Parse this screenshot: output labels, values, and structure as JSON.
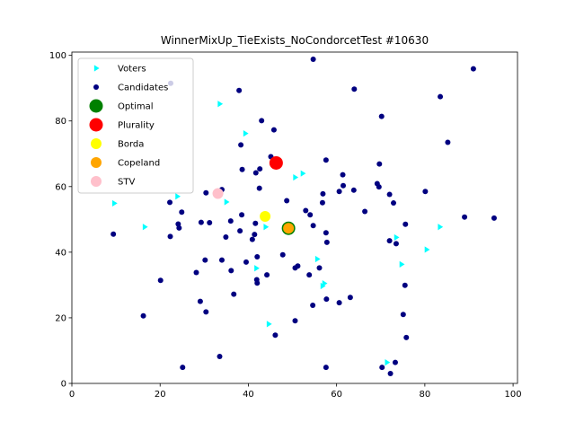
{
  "chart_data": {
    "type": "scatter",
    "title": "WinnerMixUp_TieExists_NoCondorcetTest #10630",
    "xlabel": "",
    "ylabel": "",
    "xlim": [
      0,
      101
    ],
    "ylim": [
      0,
      101
    ],
    "x_ticks": [
      "0",
      "20",
      "40",
      "60",
      "80",
      "100"
    ],
    "y_ticks": [
      "0",
      "20",
      "40",
      "60",
      "80",
      "100"
    ],
    "grid": false,
    "legend_position": "top-left",
    "series": [
      {
        "name": "Voters",
        "marker": "triangle-right",
        "color": "#00ffff",
        "points": [
          [
            33.5,
            85.2
          ],
          [
            39.3,
            76.2
          ],
          [
            52.3,
            64.0
          ],
          [
            50.6,
            62.8
          ],
          [
            23.9,
            57.0
          ],
          [
            9.6,
            54.9
          ],
          [
            35.0,
            55.3
          ],
          [
            16.5,
            47.7
          ],
          [
            43.9,
            47.7
          ],
          [
            41.8,
            35.1
          ],
          [
            55.6,
            37.9
          ],
          [
            57.2,
            30.5
          ],
          [
            44.6,
            18.1
          ],
          [
            73.5,
            44.5
          ],
          [
            80.4,
            40.8
          ],
          [
            74.7,
            36.3
          ],
          [
            83.4,
            47.7
          ],
          [
            71.4,
            6.4
          ],
          [
            56.8,
            29.7
          ]
        ]
      },
      {
        "name": "Candidates",
        "marker": "circle",
        "color": "#000080",
        "points": [
          [
            54.7,
            98.8
          ],
          [
            91.0,
            95.9
          ],
          [
            22.4,
            91.5
          ],
          [
            37.9,
            89.3
          ],
          [
            64.0,
            89.7
          ],
          [
            83.5,
            87.4
          ],
          [
            70.2,
            81.4
          ],
          [
            43.0,
            80.1
          ],
          [
            45.8,
            77.3
          ],
          [
            85.2,
            73.5
          ],
          [
            38.3,
            72.7
          ],
          [
            45.1,
            69.1
          ],
          [
            57.6,
            68.1
          ],
          [
            69.7,
            66.9
          ],
          [
            38.6,
            65.2
          ],
          [
            41.7,
            64.2
          ],
          [
            42.6,
            65.4
          ],
          [
            61.4,
            63.6
          ],
          [
            61.5,
            60.3
          ],
          [
            69.2,
            60.9
          ],
          [
            69.6,
            59.9
          ],
          [
            63.9,
            58.9
          ],
          [
            60.6,
            58.5
          ],
          [
            72.0,
            57.6
          ],
          [
            80.1,
            58.5
          ],
          [
            42.5,
            59.5
          ],
          [
            34.0,
            59.1
          ],
          [
            30.4,
            58.1
          ],
          [
            56.9,
            57.8
          ],
          [
            48.7,
            55.7
          ],
          [
            56.8,
            55.1
          ],
          [
            72.9,
            55.0
          ],
          [
            22.2,
            55.2
          ],
          [
            53.0,
            52.7
          ],
          [
            54.0,
            51.4
          ],
          [
            66.4,
            52.4
          ],
          [
            24.9,
            52.2
          ],
          [
            38.5,
            51.4
          ],
          [
            36.0,
            49.5
          ],
          [
            29.3,
            49.1
          ],
          [
            31.2,
            49.0
          ],
          [
            24.1,
            48.6
          ],
          [
            24.3,
            47.4
          ],
          [
            54.7,
            48.1
          ],
          [
            41.6,
            48.8
          ],
          [
            75.6,
            48.5
          ],
          [
            57.6,
            45.9
          ],
          [
            38.1,
            46.5
          ],
          [
            41.4,
            45.4
          ],
          [
            22.3,
            44.8
          ],
          [
            9.4,
            45.5
          ],
          [
            34.9,
            44.6
          ],
          [
            40.9,
            43.9
          ],
          [
            72.0,
            43.5
          ],
          [
            73.5,
            42.6
          ],
          [
            57.8,
            43.0
          ],
          [
            89.0,
            50.7
          ],
          [
            95.7,
            50.4
          ],
          [
            42.0,
            38.6
          ],
          [
            47.8,
            39.2
          ],
          [
            34.0,
            37.6
          ],
          [
            30.2,
            37.6
          ],
          [
            39.5,
            37.0
          ],
          [
            51.2,
            35.8
          ],
          [
            50.6,
            35.2
          ],
          [
            56.1,
            35.2
          ],
          [
            36.1,
            34.4
          ],
          [
            28.2,
            33.8
          ],
          [
            44.2,
            33.1
          ],
          [
            53.8,
            33.1
          ],
          [
            20.1,
            31.4
          ],
          [
            41.9,
            31.6
          ],
          [
            42.0,
            30.6
          ],
          [
            75.5,
            29.9
          ],
          [
            36.7,
            27.2
          ],
          [
            63.1,
            26.2
          ],
          [
            57.7,
            25.7
          ],
          [
            60.6,
            24.6
          ],
          [
            29.1,
            25.0
          ],
          [
            54.6,
            23.8
          ],
          [
            30.4,
            21.8
          ],
          [
            16.2,
            20.6
          ],
          [
            75.1,
            21.0
          ],
          [
            50.6,
            19.1
          ],
          [
            46.1,
            14.7
          ],
          [
            75.8,
            14.0
          ],
          [
            33.5,
            8.2
          ],
          [
            73.3,
            6.4
          ],
          [
            25.1,
            4.9
          ],
          [
            57.6,
            4.9
          ],
          [
            70.3,
            4.9
          ],
          [
            72.2,
            3.0
          ]
        ]
      }
    ],
    "winners": [
      {
        "name": "Optimal",
        "x": 49.1,
        "y": 47.3,
        "color": "#008000"
      },
      {
        "name": "Plurality",
        "x": 46.3,
        "y": 67.2,
        "color": "#ff0000"
      },
      {
        "name": "Borda",
        "x": 43.8,
        "y": 50.9,
        "color": "#ffff00"
      },
      {
        "name": "Copeland",
        "x": 49.1,
        "y": 47.3,
        "color": "#ffa500"
      },
      {
        "name": "STV",
        "x": 33.1,
        "y": 57.9,
        "color": "#ffc0cb"
      }
    ]
  }
}
